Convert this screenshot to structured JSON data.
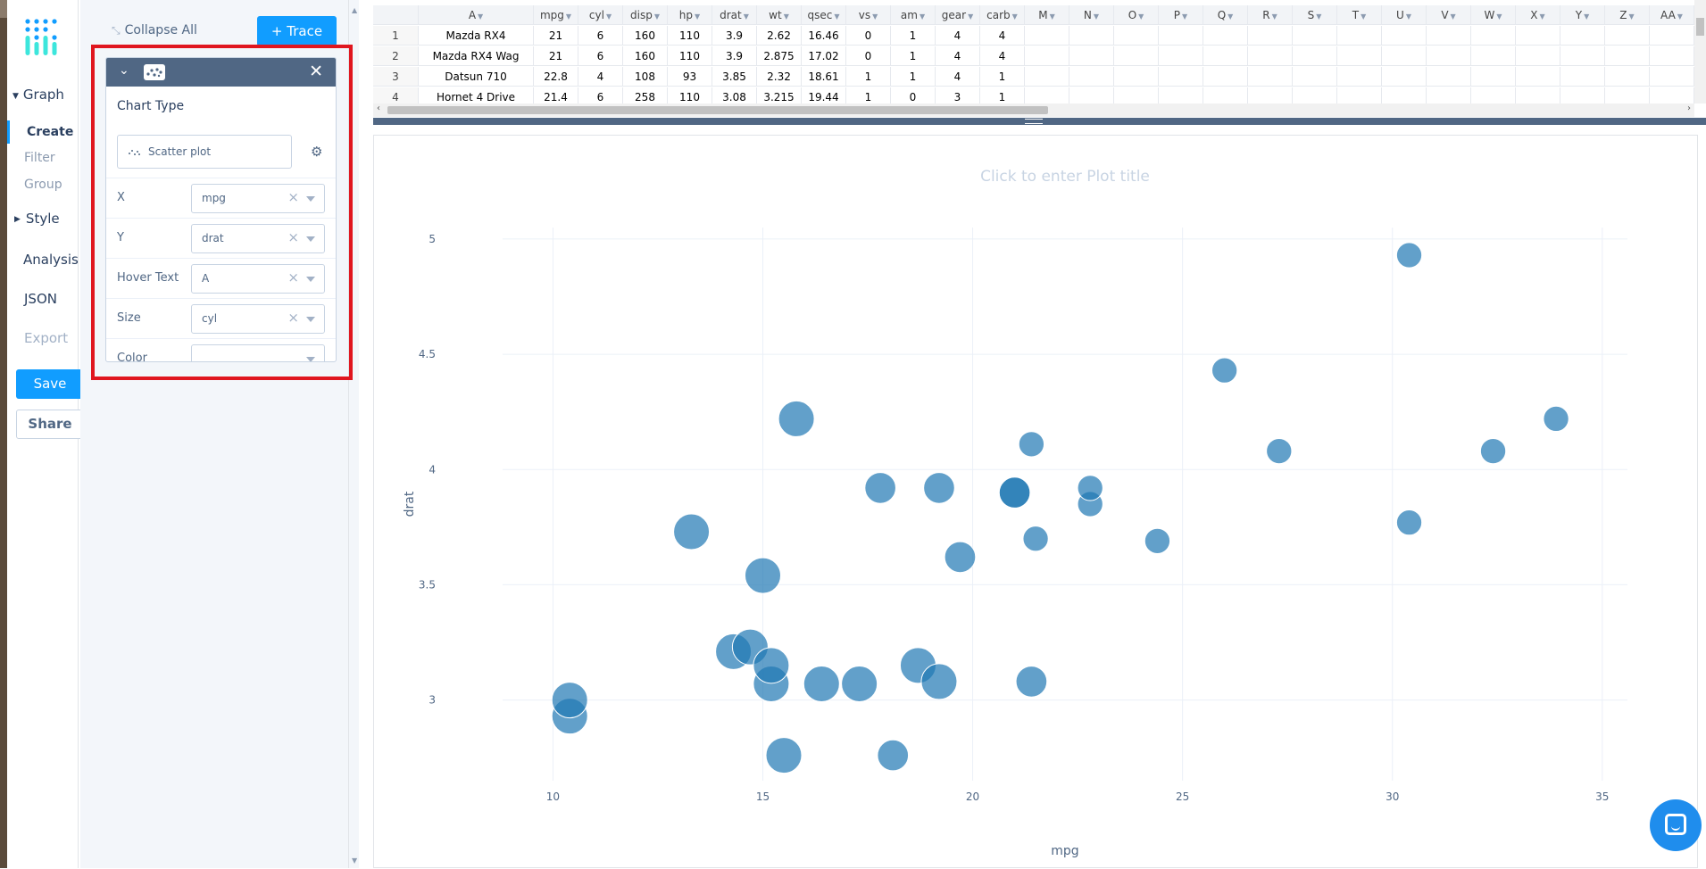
{
  "nav": {
    "graph_label": "Graph",
    "create_label": "Create",
    "filter_label": "Filter",
    "group_label": "Group",
    "style_label": "Style",
    "analysis_label": "Analysis",
    "json_label": "JSON",
    "export_label": "Export",
    "save_label": "Save",
    "share_label": "Share"
  },
  "panel": {
    "collapse_all_label": "Collapse All",
    "add_trace_label": "+ Trace",
    "chart_type_title": "Chart Type",
    "chart_type_value": "Scatter plot",
    "fields": [
      {
        "label": "X",
        "value": "mpg"
      },
      {
        "label": "Y",
        "value": "drat"
      },
      {
        "label": "Hover Text",
        "value": "A"
      },
      {
        "label": "Size",
        "value": "cyl"
      },
      {
        "label": "Color",
        "value": ""
      }
    ]
  },
  "grid": {
    "columns": [
      "A",
      "mpg",
      "cyl",
      "disp",
      "hp",
      "drat",
      "wt",
      "qsec",
      "vs",
      "am",
      "gear",
      "carb",
      "M",
      "N",
      "O",
      "P",
      "Q",
      "R",
      "S",
      "T",
      "U",
      "V",
      "W",
      "X",
      "Y",
      "Z",
      "AA"
    ],
    "rows": [
      [
        "1",
        "Mazda RX4",
        "21",
        "6",
        "160",
        "110",
        "3.9",
        "2.62",
        "16.46",
        "0",
        "1",
        "4",
        "4"
      ],
      [
        "2",
        "Mazda RX4 Wag",
        "21",
        "6",
        "160",
        "110",
        "3.9",
        "2.875",
        "17.02",
        "0",
        "1",
        "4",
        "4"
      ],
      [
        "3",
        "Datsun 710",
        "22.8",
        "4",
        "108",
        "93",
        "3.85",
        "2.32",
        "18.61",
        "1",
        "1",
        "4",
        "1"
      ],
      [
        "4",
        "Hornet 4 Drive",
        "21.4",
        "6",
        "258",
        "110",
        "3.08",
        "3.215",
        "19.44",
        "1",
        "0",
        "3",
        "1"
      ]
    ]
  },
  "plot": {
    "title_placeholder": "Click to enter Plot title",
    "marker_color": "#1f77b4"
  },
  "chart_data": {
    "type": "scatter",
    "xlabel": "mpg",
    "ylabel": "drat",
    "xlim": [
      8.8,
      35.6
    ],
    "ylim": [
      2.65,
      5.05
    ],
    "x_ticks": [
      10,
      15,
      20,
      25,
      30,
      35
    ],
    "y_ticks": [
      3,
      3.5,
      4,
      4.5,
      5
    ],
    "grid": true,
    "points": [
      {
        "x": 21,
        "y": 3.9,
        "size": 6
      },
      {
        "x": 21,
        "y": 3.9,
        "size": 6
      },
      {
        "x": 22.8,
        "y": 3.85,
        "size": 4
      },
      {
        "x": 21.4,
        "y": 3.08,
        "size": 6
      },
      {
        "x": 18.7,
        "y": 3.15,
        "size": 8
      },
      {
        "x": 18.1,
        "y": 2.76,
        "size": 6
      },
      {
        "x": 14.3,
        "y": 3.21,
        "size": 8
      },
      {
        "x": 24.4,
        "y": 3.69,
        "size": 4
      },
      {
        "x": 22.8,
        "y": 3.92,
        "size": 4
      },
      {
        "x": 19.2,
        "y": 3.92,
        "size": 6
      },
      {
        "x": 17.8,
        "y": 3.92,
        "size": 6
      },
      {
        "x": 16.4,
        "y": 3.07,
        "size": 8
      },
      {
        "x": 17.3,
        "y": 3.07,
        "size": 8
      },
      {
        "x": 15.2,
        "y": 3.07,
        "size": 8
      },
      {
        "x": 10.4,
        "y": 2.93,
        "size": 8
      },
      {
        "x": 10.4,
        "y": 3.0,
        "size": 8
      },
      {
        "x": 14.7,
        "y": 3.23,
        "size": 8
      },
      {
        "x": 32.4,
        "y": 4.08,
        "size": 4
      },
      {
        "x": 30.4,
        "y": 4.93,
        "size": 4
      },
      {
        "x": 33.9,
        "y": 4.22,
        "size": 4
      },
      {
        "x": 21.5,
        "y": 3.7,
        "size": 4
      },
      {
        "x": 15.5,
        "y": 2.76,
        "size": 8
      },
      {
        "x": 15.2,
        "y": 3.15,
        "size": 8
      },
      {
        "x": 13.3,
        "y": 3.73,
        "size": 8
      },
      {
        "x": 19.2,
        "y": 3.08,
        "size": 8
      },
      {
        "x": 27.3,
        "y": 4.08,
        "size": 4
      },
      {
        "x": 26,
        "y": 4.43,
        "size": 4
      },
      {
        "x": 30.4,
        "y": 3.77,
        "size": 4
      },
      {
        "x": 15.8,
        "y": 4.22,
        "size": 8
      },
      {
        "x": 19.7,
        "y": 3.62,
        "size": 6
      },
      {
        "x": 15,
        "y": 3.54,
        "size": 8
      },
      {
        "x": 21.4,
        "y": 4.11,
        "size": 4
      }
    ]
  }
}
